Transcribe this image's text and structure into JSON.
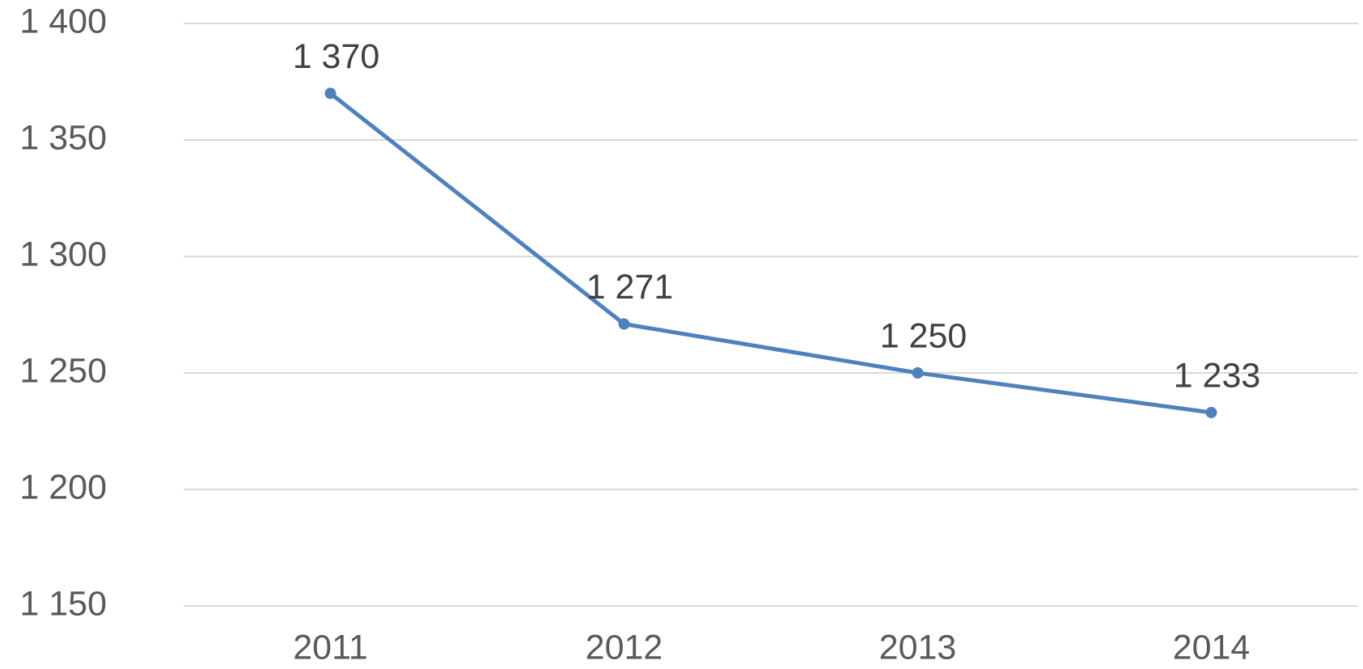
{
  "chart_data": {
    "type": "line",
    "categories": [
      "2011",
      "2012",
      "2013",
      "2014"
    ],
    "series": [
      {
        "name": null,
        "color": "#4f81bd",
        "values": [
          1370,
          1271,
          1250,
          1233
        ],
        "value_labels": [
          "1 370",
          "1 271",
          "1 250",
          "1 233"
        ]
      }
    ],
    "ylim": [
      1150,
      1400
    ],
    "yticks": [
      {
        "value": 1150,
        "label": "1 150"
      },
      {
        "value": 1200,
        "label": "1 200"
      },
      {
        "value": 1250,
        "label": "1 250"
      },
      {
        "value": 1300,
        "label": "1 300"
      },
      {
        "value": 1350,
        "label": "1 350"
      },
      {
        "value": 1400,
        "label": "1 400"
      }
    ],
    "grid": true
  }
}
